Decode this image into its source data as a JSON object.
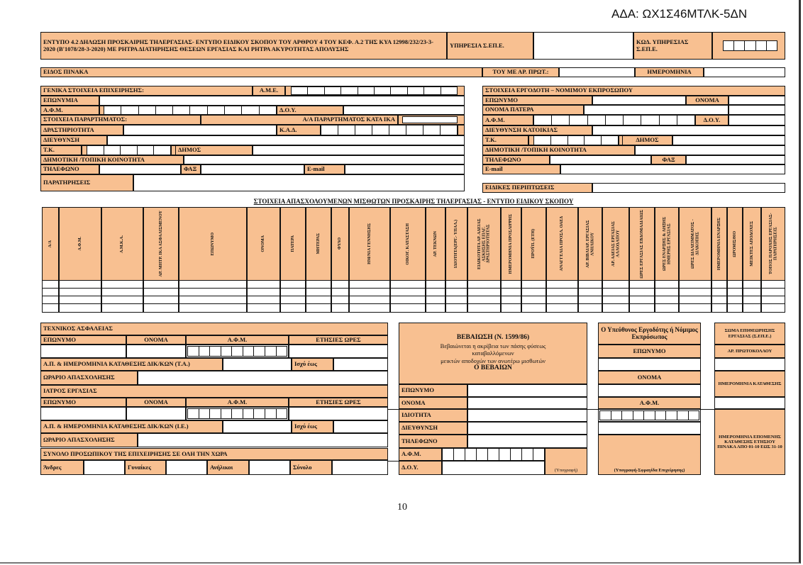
{
  "ada": "ΑΔΑ: ΩΧ1Σ46ΜΤΛΚ-5ΔΝ",
  "header": {
    "title": "ΕΝΤΥΠΟ 4.2 ΔΗΛΩΣΗ ΠΡΟΣΚΑΙΡΗΣ ΤΗΛΕΡΓΑΣΙΑΣ- ΕΝΤΥΠΟ ΕΙΔΙΚΟΥ ΣΚΟΠΟΥ ΤΟΥ ΑΡΘΡΟΥ 4 ΤΟΥ ΚΕΦ. Α.2 ΤΗΣ ΚΥΑ 12998/232/23-3-2020 (Β'1078/28-3-2020) ΜΕ ΡΗΤΡΑ ΔΙΑΤΗΡΗΣΗΣ ΘΕΣΕΩΝ ΕΡΓΑΣΙΑΣ ΚΑΙ ΡΗΤΡΑ ΑΚΥΡΟΤΗΤΑΣ ΑΠΟΛΥΣΗΣ",
    "service": "ΥΠΗΡΕΣΙΑ Σ.ΕΠ.Ε.",
    "service_code": "ΚΩΔ. ΥΠΗΡΕΣΙΑΣ Σ.ΕΠ.Ε."
  },
  "table_type": {
    "label": "ΕΙΔΟΣ  ΠΙΝΑΚΑ",
    "protocol": "ΤΟΥ ΜΕ ΑΡ. ΠΡΩΤ.:",
    "date": "ΗΜΕΡΟΜΗΝΙΑ"
  },
  "company": {
    "title": "ΓΕΝΙΚΑ ΣΤΟΙΧΕΙΑ ΕΠΙΧΕΙΡΗΣΗΣ:",
    "ame": "Α.Μ.Ε.",
    "name": "ΕΠΩΝΥΜΙΑ",
    "afm": "Α.Φ.Μ.",
    "doy": "Δ.Ο.Υ.",
    "branch": "ΣΤΟΙΧΕΙΑ ΠΑΡΑΡΤΗΜΑΤΟΣ:",
    "branch_no": "Α/Α  ΠΑΡΑΡΤΗΜΑΤΟΣ ΚΑΤΑ ΙΚΑ",
    "activity": "ΔΡΑΣΤΗΡΙΟΤΗΤΑ",
    "kad": "Κ.Α.Δ.",
    "address": "ΔΙΕΥΘΥΝΣΗ",
    "tk": "Τ.Κ.",
    "municipality": "ΔΗΜΟΣ",
    "community": "ΔΗΜΟΤΙΚΗ /ΤΟΠΙΚΗ ΚΟΙΝΟΤΗΤΑ",
    "phone": "ΤΗΛΕΦΩΝΟ",
    "fax": "ΦΑΞ",
    "email": "E-mail",
    "remarks": "ΠΑΡΑΤΗΡΗΣΕΙΣ"
  },
  "employer": {
    "title": "ΣΤΟΙΧΕΙΑ   ΕΡΓΟΔΟΤΗ – ΝΟΜΙΜΟΥ ΕΚΠΡΟΣΩΠΟΥ",
    "surname": "ΕΠΩΝΥΜΟ",
    "name": "ΟΝΟΜΑ",
    "father": "ΟΝΟΜΑ ΠΑΤΕΡΑ",
    "afm": "Α.Φ.Μ.",
    "doy": "Δ.Ο.Υ.",
    "address": "ΔΙΕΥΘΥΝΣΗ ΚΑΤΟΙΚΙΑΣ",
    "tk": "Τ.Κ.",
    "municipality": "ΔΗΜΟΣ",
    "community": "ΔΗΜΟΤΙΚΗ /ΤΟΠΙΚΗ ΚΟΙΝΟΤΗΤΑ",
    "phone": "ΤΗΛΕΦΩΝΟ",
    "fax": "ΦΑΞ",
    "email": "E-mail",
    "special": "ΕΙΔΙΚΕΣ ΠΕΡΙΠΤΩΣΕΙΣ"
  },
  "employees": {
    "title": "ΣΤΟΙΧΕΙΑ ΑΠΑΣΧΟΛΟΥΜΕΝΩΝ ΜΙΣΘΩΤΩΝ ΠΡΟΣΚΑΙΡΗΣ ΤΗΛΕΡΓΑΣΙΑΣ - ΕΝΤΥΠΟ ΕΙΔΙΚΟΥ ΣΚΟΠΟΥ",
    "columns": [
      "Α/Α",
      "Α.Φ.Μ.",
      "Α.Μ.Κ.Α.",
      "ΑΡ. ΜΗΤΡ. ΙΚΑ ΑΣΦΑΛΙΣΜΕΝΟΥ",
      "ΕΠΩΝΥΜΟ",
      "ΟΝΟΜΑ",
      "ΠΑΤΕΡΑ",
      "ΜΗΤΕΡΑΣ",
      "ΦΥΛΟ",
      "ΗΜ/ΝΙΑ ΓΕΝΝΗΣΗΣ",
      "ΟΙΚΟΓ. ΚΑΤΑΣΤΑΣΗ",
      "ΑΡ. ΤΕΚΝΩΝ",
      "ΙΔΙΟΤΗΤΑ(ΕΡΓ.- ΥΠΑΛ.)",
      "ΕΙΔΙΚΟΤΗΤΑ ΑΡ. ΑΔΕΙΑΣ ΑΣΚΗΣΗΣ ΕΠΑΓ. ΔΡΑΣΤΗΡΙΟΤΗΤΑΣ",
      "ΗΜΕΡΟΜΗΝΙΑ ΠΡΟΣΛΗΨΗΣ",
      "ΠΡΟΫΠ. (ΕΤΗ)",
      "ΑΝΑΓΓΕΛΙΑ ΠΡΟΣΛ. ΟΑΕΔ",
      "ΑΡ. ΒΙΒΛΙΑΡ. ΕΡΓΑΣΙΑΣ ΑΝΗΛΙΚΟΥ",
      "ΑΡ. ΑΔΕΙΑΣ ΕΡΓΑΣΙΑΣ ΑΛΛΟΔΑΠΟΥ",
      "ΩΡΕΣ ΕΡΓΑΣΙΑΣ ΕΒΔΟΜΑΔΙΑΙΩΣ",
      "ΩΡΕΣ ΕΝΑΡΞΗΣ & ΛΗΞΗΣ ΗΜΕΡΗΣ ΕΡΓΑΣΙΑΣ",
      "ΩΡΕΣ ΔΙΑΛΕΙΜΜΑΤΟΣ - ΔΙΑΚΟΠΗΣ",
      "ΗΜΕΡΟΜΗΝΙΑ ΕΝΑΡΞΗΣ",
      "ΩΡΟΜΙΣΘΙΟ",
      "ΜΕΙΚΤΕΣ ΑΠΟΔΟΧΕΣ",
      "ΤΟΠΟΣ ΠΑΡΟΧΗΣ ΕΡΓΑΣΙΑΣ- ΠΑΡΑΤΗΡΗΣΕΙΣ"
    ]
  },
  "safety": {
    "title": "ΤΕΧΝΙΚΟΣ ΑΣΦΑΛΕΙΑΣ",
    "cols": [
      "ΕΠΩΝΥΜΟ",
      "ΟΝΟΜΑ",
      "Α.Φ.Μ.",
      "ΕΤΗΣΙΕΣ ΩΡΕΣ"
    ],
    "filing": "Α.Π. & ΗΜΕΡΟΜΗΝΙΑ ΚΑΤΑΘΕΣΗΣ ΔΙΚ/ΚΩΝ (Τ.Α.)",
    "valid": "Ισχύ έως",
    "hours": "ΩΡΑΡΙΟ ΑΠΑΣΧΟΛΗΣΗΣ"
  },
  "doctor": {
    "title": "ΙΑΤΡΟΣ ΕΡΓΑΣΙΑΣ",
    "cols": [
      "ΕΠΩΝΥΜΟ",
      "ΟΝΟΜΑ",
      "Α.Φ.Μ.",
      "ΕΤΗΣΙΕΣ ΩΡΕΣ"
    ],
    "filing": "Α.Π. & ΗΜΕΡΟΜΗΝΙΑ ΚΑΤΑΘΕΣΗΣ ΔΙΚ/ΚΩΝ (Ι.Ε.)",
    "valid": "Ισχύ έως",
    "hours": "ΩΡΑΡΙΟ ΑΠΑΣΧΟΛΗΣΗΣ"
  },
  "staff": {
    "title": "ΣΥΝΟΛΟ ΠΡΟΣΩΠΙΚΟΥ ΤΗΣ ΕΠΙΧΕΙΡΗΣΗΣ ΣΕ ΟΛΗ ΤΗΝ ΧΩΡΑ",
    "men": "Άνδρες",
    "women": "Γυναίκες",
    "minors": "Ανήλικοι",
    "total": "Σύνολο"
  },
  "cert": {
    "title": "ΒΕΒΑΙΩΣΗ (Ν. 1599/86)",
    "text": [
      "Βεβαιώνεται η ακρίβεια των πάσης φύσεως",
      "καταβαλλόμενων",
      "μεικτών αποδοχών των ανωτέρω μισθωτών"
    ],
    "signer": "Ο ΒΕΒΑΙΩΝ",
    "surname": "ΕΠΩΝΥΜΟ",
    "name": "ΟΝΟΜΑ",
    "capacity": "ΙΔΙΟΤΗΤΑ",
    "address": "ΔΙΕΥΘΥΝΣΗ",
    "phone": "ΤΗΛΕΦΩΝΟ",
    "afm": "Α.Φ.Μ.",
    "doy": "Δ.Ο.Υ.",
    "signature": "(Υπογραφή)"
  },
  "responsible": {
    "title": "Ο Υπεύθυνος Εργοδότης ή Νόμιμος Εκπρόσωπος",
    "surname": "ΕΠΩΝΥΜΟ",
    "name": "ΟΝΟΜΑ",
    "afm": "Α.Φ.Μ.",
    "signature": "(Υπογραφή-Σφραγίδα Επιχείρησης)"
  },
  "sepe": {
    "title": "ΣΩΜΑ ΕΠΙΘΕΩΡΗΣΗΣ ΕΡΓΑΣΙΑΣ  (Σ.ΕΠ.Ε.)",
    "protocol": "ΑΡ. ΠΡΩΤΟΚΟΛΛΟΥ",
    "filing_date": "ΗΜΕΡΟΜΗΝΙΑ ΚΑΤΑΘΕΣΗΣ",
    "next_date": "ΗΜΕΡΟΜΗΝΙΑ ΕΠΟΜΕΝΗΣ ΚΑΤΑΘΕΣΗΣ ΕΤΗΣΙΟΥ ΠΙΝΑΚΑ ΑΠΟ 01-10 ΕΩΣ 31-10"
  },
  "colors": {
    "label_fill": "#f8c091",
    "border": "#111111"
  },
  "page_number": "10"
}
